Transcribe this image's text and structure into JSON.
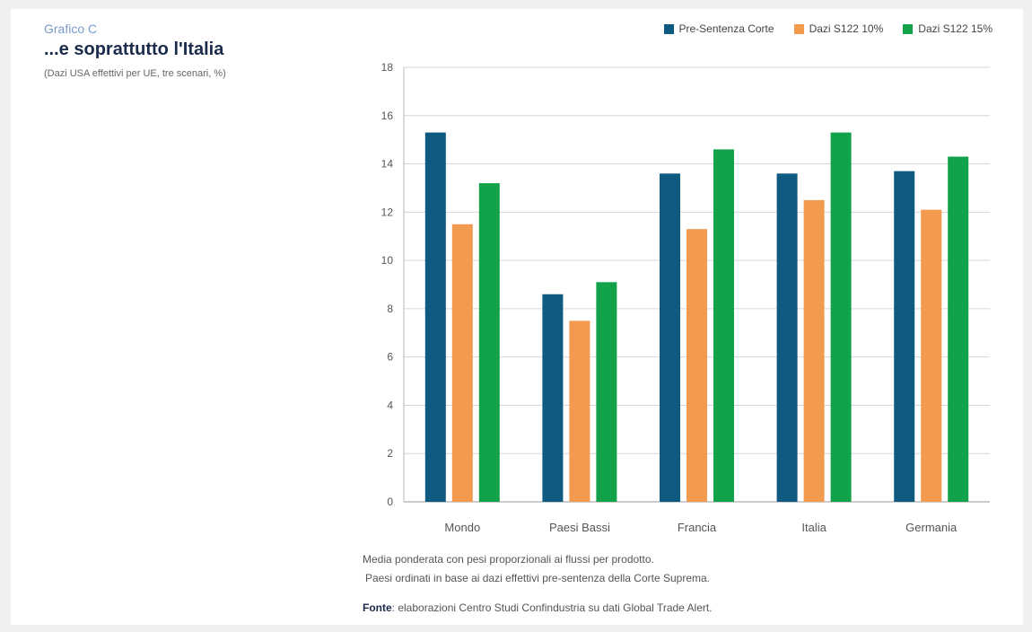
{
  "header": {
    "kicker": "Grafico C",
    "title": "...e soprattutto l'Italia",
    "subtitle": "(Dazi USA effettivi per UE, tre scenari, %)"
  },
  "notes": {
    "line1": "Media ponderata con pesi proporzionali ai flussi per prodotto.",
    "line2": "Paesi ordinati in base ai dazi effettivi pre-sentenza della Corte Suprema.",
    "source_label": "Fonte",
    "source_text": ": elaborazioni Centro Studi Confindustria su dati Global Trade Alert."
  },
  "chart_data": {
    "type": "bar",
    "categories": [
      "Mondo",
      "Paesi Bassi",
      "Francia",
      "Italia",
      "Germania"
    ],
    "series": [
      {
        "name": "Pre-Sentenza Corte",
        "color": "#0e5a80",
        "values": [
          15.3,
          8.6,
          13.6,
          13.6,
          13.7
        ]
      },
      {
        "name": "Dazi S122 10%",
        "color": "#f29a4e",
        "values": [
          11.5,
          7.5,
          11.3,
          12.5,
          12.1
        ]
      },
      {
        "name": "Dazi S122 15%",
        "color": "#12a24a",
        "values": [
          13.2,
          9.1,
          14.6,
          15.3,
          14.3
        ]
      }
    ],
    "ylim": [
      0,
      18
    ],
    "yticks": [
      0,
      2,
      4,
      6,
      8,
      10,
      12,
      14,
      16,
      18
    ],
    "grid": true,
    "legend_position": "top-right"
  }
}
